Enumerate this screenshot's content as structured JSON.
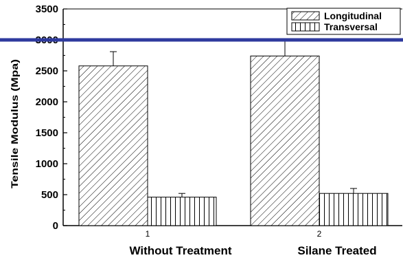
{
  "chart_data": {
    "type": "bar",
    "categories": [
      "1",
      "2"
    ],
    "category_labels": [
      "Without Treatment",
      "Silane Treated"
    ],
    "series": [
      {
        "name": "Longitudinal",
        "values": [
          2580,
          2740
        ],
        "errors": [
          230,
          260
        ],
        "pattern": "diagonal-hatch"
      },
      {
        "name": "Transversal",
        "values": [
          460,
          520
        ],
        "errors": [
          60,
          80
        ],
        "pattern": "vertical-hatch"
      }
    ],
    "title": "",
    "xlabel": "",
    "ylabel": "Tensile Modulus (Mpa)",
    "ylim": [
      0,
      3500
    ],
    "yticks": [
      0,
      500,
      1000,
      1500,
      2000,
      2500,
      3000,
      3500
    ],
    "legend_position": "top-right",
    "grid": false,
    "overlay_line_color": "#2e3a9e",
    "overlay_line_value": 3000
  }
}
